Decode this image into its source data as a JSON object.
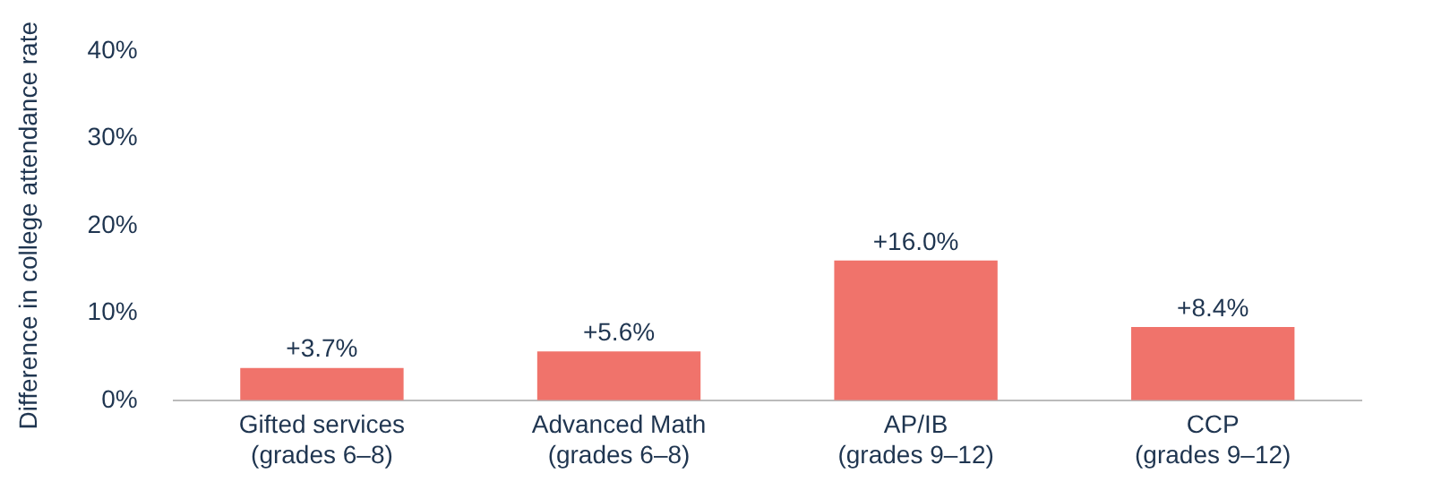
{
  "chart_data": {
    "type": "bar",
    "ylabel": "Difference in college attendance rate",
    "categories": [
      "Gifted services\n(grades 6–8)",
      "Advanced Math\n(grades 6–8)",
      "AP/IB\n(grades 9–12)",
      "CCP\n(grades 9–12)"
    ],
    "values": [
      3.7,
      5.6,
      16.0,
      8.4
    ],
    "color": "#f0736b",
    "value_labels": [
      "+3.7%",
      "+5.6%",
      "+16.0%",
      "+8.4%"
    ],
    "ylim": [
      0,
      40
    ],
    "yticks": [
      {
        "value": 0,
        "label": "0%"
      },
      {
        "value": 10,
        "label": "10%"
      },
      {
        "value": 20,
        "label": "20%"
      },
      {
        "value": 30,
        "label": "30%"
      },
      {
        "value": 40,
        "label": "40%"
      }
    ],
    "grid": false,
    "legend": false
  }
}
